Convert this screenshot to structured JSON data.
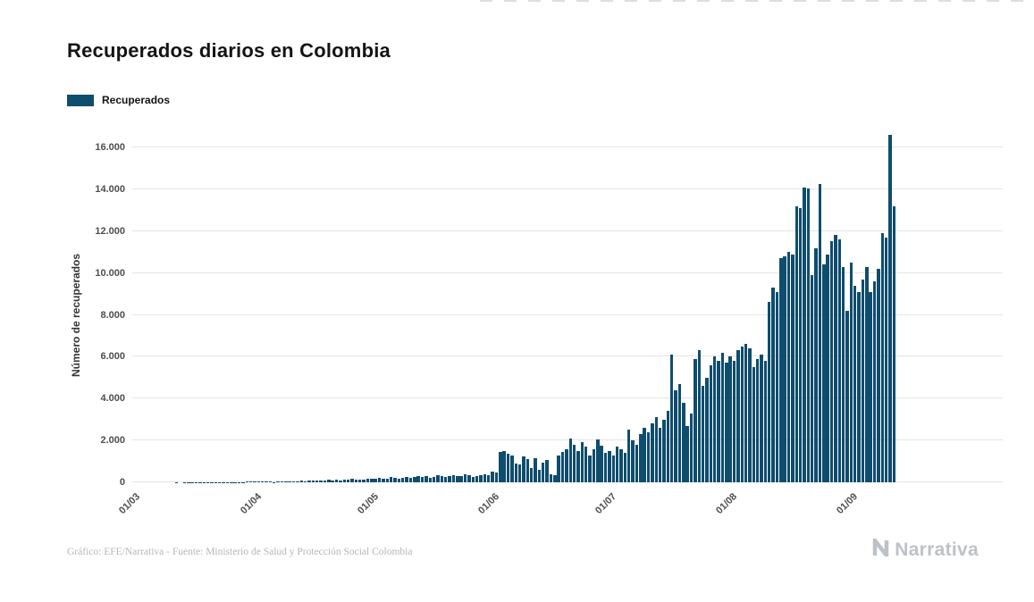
{
  "header": {
    "title": "Recuperados diarios en Colombia"
  },
  "legend": {
    "label": "Recuperados"
  },
  "chart_data": {
    "type": "bar",
    "title": "Recuperados diarios en Colombia",
    "xlabel": "",
    "ylabel": "Número de recuperados",
    "x_start": "01/03",
    "x_frequency": "daily",
    "ylim": [
      0,
      16000
    ],
    "grid": "horizontal-only",
    "legend_position": "top-left",
    "bar_color": "#0f4d6e",
    "y_ticks": {
      "values": [
        0,
        2000,
        4000,
        6000,
        8000,
        10000,
        12000,
        14000,
        16000
      ],
      "labels": [
        "0",
        "2.000",
        "4.000",
        "6.000",
        "8.000",
        "10.000",
        "12.000",
        "14.000",
        "16.000"
      ]
    },
    "x_ticks": [
      {
        "label": "01/03",
        "day_index": 0
      },
      {
        "label": "01/04",
        "day_index": 31
      },
      {
        "label": "01/05",
        "day_index": 61
      },
      {
        "label": "01/06",
        "day_index": 92
      },
      {
        "label": "01/07",
        "day_index": 122
      },
      {
        "label": "01/08",
        "day_index": 153
      },
      {
        "label": "01/09",
        "day_index": 184
      }
    ],
    "series": [
      {
        "name": "Recuperados",
        "values": [
          0,
          0,
          0,
          0,
          0,
          0,
          0,
          2,
          1,
          3,
          2,
          4,
          3,
          5,
          4,
          6,
          5,
          8,
          6,
          10,
          8,
          12,
          10,
          15,
          12,
          18,
          15,
          20,
          18,
          25,
          30,
          40,
          30,
          25,
          45,
          35,
          20,
          50,
          40,
          60,
          45,
          35,
          55,
          70,
          60,
          90,
          75,
          65,
          100,
          85,
          110,
          90,
          120,
          100,
          130,
          110,
          150,
          120,
          140,
          125,
          160,
          150,
          170,
          200,
          160,
          190,
          240,
          210,
          180,
          230,
          260,
          200,
          240,
          280,
          250,
          300,
          220,
          260,
          330,
          290,
          270,
          310,
          350,
          280,
          320,
          380,
          360,
          270,
          300,
          350,
          400,
          330,
          520,
          480,
          1450,
          1500,
          1380,
          1280,
          900,
          850,
          1250,
          1100,
          700,
          1150,
          600,
          950,
          1050,
          400,
          350,
          1300,
          1450,
          1600,
          2100,
          1800,
          1500,
          1900,
          1700,
          1300,
          1600,
          2050,
          1750,
          1400,
          1500,
          1300,
          1700,
          1600,
          1400,
          2500,
          2000,
          1800,
          2300,
          2600,
          2400,
          2800,
          3100,
          2600,
          3000,
          3400,
          6100,
          4400,
          4700,
          3800,
          2700,
          3300,
          5900,
          6300,
          4600,
          5000,
          5600,
          6000,
          5800,
          6200,
          5700,
          6000,
          5800,
          6300,
          6500,
          6600,
          6400,
          5500,
          5900,
          6100,
          5800,
          8600,
          9300,
          9100,
          10700,
          10800,
          11000,
          10900,
          13200,
          13100,
          14100,
          14050,
          9900,
          11200,
          14250,
          10400,
          10900,
          11500,
          11800,
          11600,
          10300,
          8200,
          10500,
          9400,
          9100,
          9700,
          10300,
          9100,
          9600,
          10200,
          11900,
          11700,
          16600,
          13200
        ]
      }
    ]
  },
  "footer": {
    "credit": "Gráfico: EFE/Narrativa - Fuente: Ministerio de Salud y Protección Social Colombia",
    "brand": "Narrativa"
  }
}
